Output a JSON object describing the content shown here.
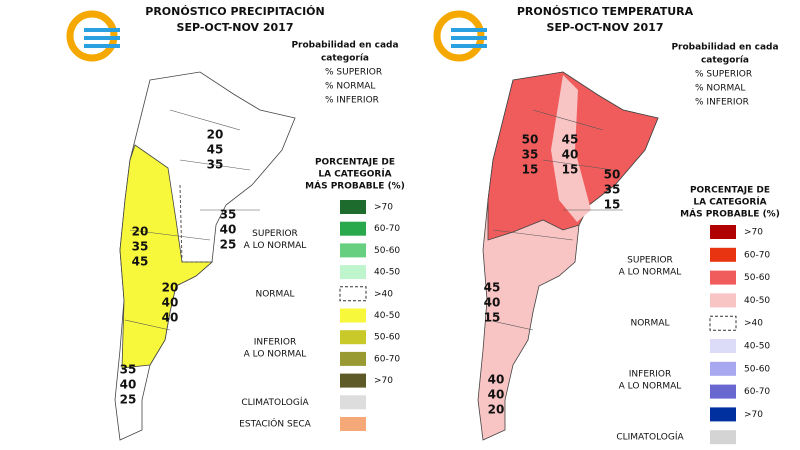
{
  "panels": [
    {
      "title": "PRONÓSTICO PRECIPITACIÓN",
      "subtitle": "SEP-OCT-NOV 2017",
      "prob_title": [
        "Probabilidad en cada",
        "categoría"
      ],
      "prob_items": [
        "% SUPERIOR",
        "% NORMAL",
        "% INFERIOR"
      ],
      "legend_title": [
        "PORCENTAJE DE",
        "LA CATEGORÍA",
        "MÁS PROBABLE (%)"
      ],
      "groups": [
        {
          "label": [
            "SUPERIOR",
            "A LO NORMAL"
          ],
          "items": [
            {
              "label": ">70",
              "color": "#1e6b2e"
            },
            {
              "label": "60-70",
              "color": "#2aa84c"
            },
            {
              "label": "50-60",
              "color": "#66d080"
            },
            {
              "label": "40-50",
              "color": "#bff5cc"
            }
          ]
        },
        {
          "label": [
            "NORMAL"
          ],
          "items": [
            {
              "label": ">40",
              "dashed": true
            }
          ]
        },
        {
          "label": [
            "INFERIOR",
            "A LO NORMAL"
          ],
          "items": [
            {
              "label": "40-50",
              "color": "#f7f73c"
            },
            {
              "label": "50-60",
              "color": "#c9c92a"
            },
            {
              "label": "60-70",
              "color": "#9a9a32"
            },
            {
              "label": ">70",
              "color": "#5e5a28"
            }
          ]
        },
        {
          "label": [
            "CLIMATOLOGÍA"
          ],
          "items": [
            {
              "color": "#dddddd"
            }
          ]
        },
        {
          "label": [
            "ESTACIÓN SECA"
          ],
          "items": [
            {
              "color": "#f5a878"
            }
          ]
        }
      ],
      "regions": [
        [
          20,
          45,
          35
        ],
        [
          20,
          35,
          45
        ],
        [
          35,
          40,
          25
        ],
        [
          20,
          40,
          40
        ],
        [
          35,
          40,
          25
        ]
      ]
    },
    {
      "title": "PRONÓSTICO TEMPERATURA",
      "subtitle": "SEP-OCT-NOV 2017",
      "prob_title": [
        "Probabilidad en cada",
        "categoría"
      ],
      "prob_items": [
        "% SUPERIOR",
        "% NORMAL",
        "% INFERIOR"
      ],
      "legend_title": [
        "PORCENTAJE DE",
        "LA CATEGORÍA",
        "MÁS PROBABLE (%)"
      ],
      "groups": [
        {
          "label": [
            "SUPERIOR",
            "A LO NORMAL"
          ],
          "items": [
            {
              "label": ">70",
              "color": "#b00000"
            },
            {
              "label": "60-70",
              "color": "#e83410"
            },
            {
              "label": "50-60",
              "color": "#f05c5c"
            },
            {
              "label": "40-50",
              "color": "#f8c4c4"
            }
          ]
        },
        {
          "label": [
            "NORMAL"
          ],
          "items": [
            {
              "label": ">40",
              "dashed": true
            }
          ]
        },
        {
          "label": [
            "INFERIOR",
            "A LO NORMAL"
          ],
          "items": [
            {
              "label": "40-50",
              "color": "#dcdcf8"
            },
            {
              "label": "50-60",
              "color": "#a8a8f0"
            },
            {
              "label": "60-70",
              "color": "#6868d0"
            },
            {
              "label": ">70",
              "color": "#0030a0"
            }
          ]
        },
        {
          "label": [
            "CLIMATOLOGÍA"
          ],
          "items": [
            {
              "color": "#d4d4d4"
            }
          ]
        }
      ],
      "regions": [
        [
          50,
          35,
          15
        ],
        [
          45,
          40,
          15
        ],
        [
          50,
          35,
          15
        ],
        [
          45,
          40,
          15
        ],
        [
          40,
          40,
          20
        ]
      ]
    }
  ]
}
